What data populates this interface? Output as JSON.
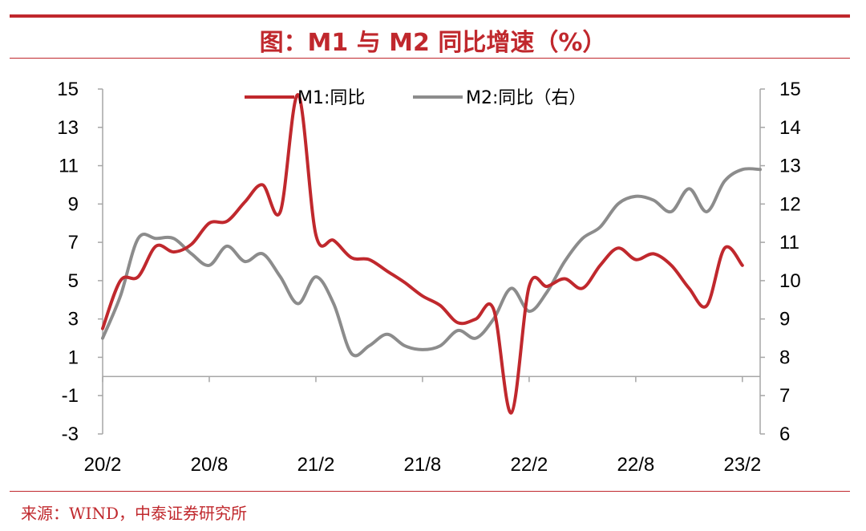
{
  "header": {
    "title": "图：M1 与 M2 同比增速（%）"
  },
  "footer": {
    "source": "来源：WIND，中泰证券研究所"
  },
  "colors": {
    "accent": "#c0282d",
    "m1": "#c0282d",
    "m2": "#8c8c8c",
    "axis": "#a6a6a6",
    "text": "#000000"
  },
  "chart_data": {
    "type": "line",
    "title": "M1 与 M2 同比增速（%）",
    "legend_position": "top-center",
    "grid": false,
    "x_tick_labels": [
      "20/2",
      "20/8",
      "21/2",
      "21/8",
      "22/2",
      "22/8",
      "23/2"
    ],
    "x_range": [
      "2020-02",
      "2023-03"
    ],
    "y_left": {
      "range": [
        -3,
        15
      ],
      "ticks": [
        -3,
        -1,
        1,
        3,
        5,
        7,
        9,
        11,
        13,
        15
      ]
    },
    "y_right": {
      "range": [
        6,
        15
      ],
      "ticks": [
        6,
        7,
        8,
        9,
        10,
        11,
        12,
        13,
        14,
        15
      ],
      "label": ""
    },
    "series": [
      {
        "name": "M1:同比",
        "axis": "left",
        "x": [
          "2020-02",
          "2020-03",
          "2020-04",
          "2020-05",
          "2020-06",
          "2020-07",
          "2020-08",
          "2020-09",
          "2020-10",
          "2020-11",
          "2020-12",
          "2021-01",
          "2021-02",
          "2021-03",
          "2021-04",
          "2021-05",
          "2021-06",
          "2021-07",
          "2021-08",
          "2021-09",
          "2021-10",
          "2021-11",
          "2021-12",
          "2022-01",
          "2022-02",
          "2022-03",
          "2022-04",
          "2022-05",
          "2022-06",
          "2022-07",
          "2022-08",
          "2022-09",
          "2022-10",
          "2022-11",
          "2022-12",
          "2023-01",
          "2023-02"
        ],
        "values": [
          2.5,
          5.0,
          5.2,
          6.8,
          6.5,
          6.9,
          8.0,
          8.1,
          9.1,
          10.0,
          8.6,
          14.7,
          7.4,
          7.1,
          6.2,
          6.1,
          5.5,
          4.9,
          4.2,
          3.7,
          2.8,
          3.0,
          3.5,
          -1.9,
          4.7,
          4.7,
          5.1,
          4.6,
          5.8,
          6.7,
          6.1,
          6.4,
          5.8,
          4.6,
          3.7,
          6.7,
          5.8
        ]
      },
      {
        "name": "M2:同比（右）",
        "axis": "right",
        "x": [
          "2020-02",
          "2020-03",
          "2020-04",
          "2020-05",
          "2020-06",
          "2020-07",
          "2020-08",
          "2020-09",
          "2020-10",
          "2020-11",
          "2020-12",
          "2021-01",
          "2021-02",
          "2021-03",
          "2021-04",
          "2021-05",
          "2021-06",
          "2021-07",
          "2021-08",
          "2021-09",
          "2021-10",
          "2021-11",
          "2021-12",
          "2022-01",
          "2022-02",
          "2022-03",
          "2022-04",
          "2022-05",
          "2022-06",
          "2022-07",
          "2022-08",
          "2022-09",
          "2022-10",
          "2022-11",
          "2022-12",
          "2023-01",
          "2023-02",
          "2023-03"
        ],
        "values": [
          8.5,
          9.6,
          11.1,
          11.1,
          11.1,
          10.7,
          10.4,
          10.9,
          10.5,
          10.7,
          10.1,
          9.4,
          10.1,
          9.4,
          8.1,
          8.3,
          8.6,
          8.3,
          8.2,
          8.3,
          8.7,
          8.5,
          9.0,
          9.8,
          9.2,
          9.7,
          10.5,
          11.1,
          11.4,
          12.0,
          12.2,
          12.1,
          11.8,
          12.4,
          11.8,
          12.6,
          12.9,
          12.9
        ]
      }
    ]
  }
}
